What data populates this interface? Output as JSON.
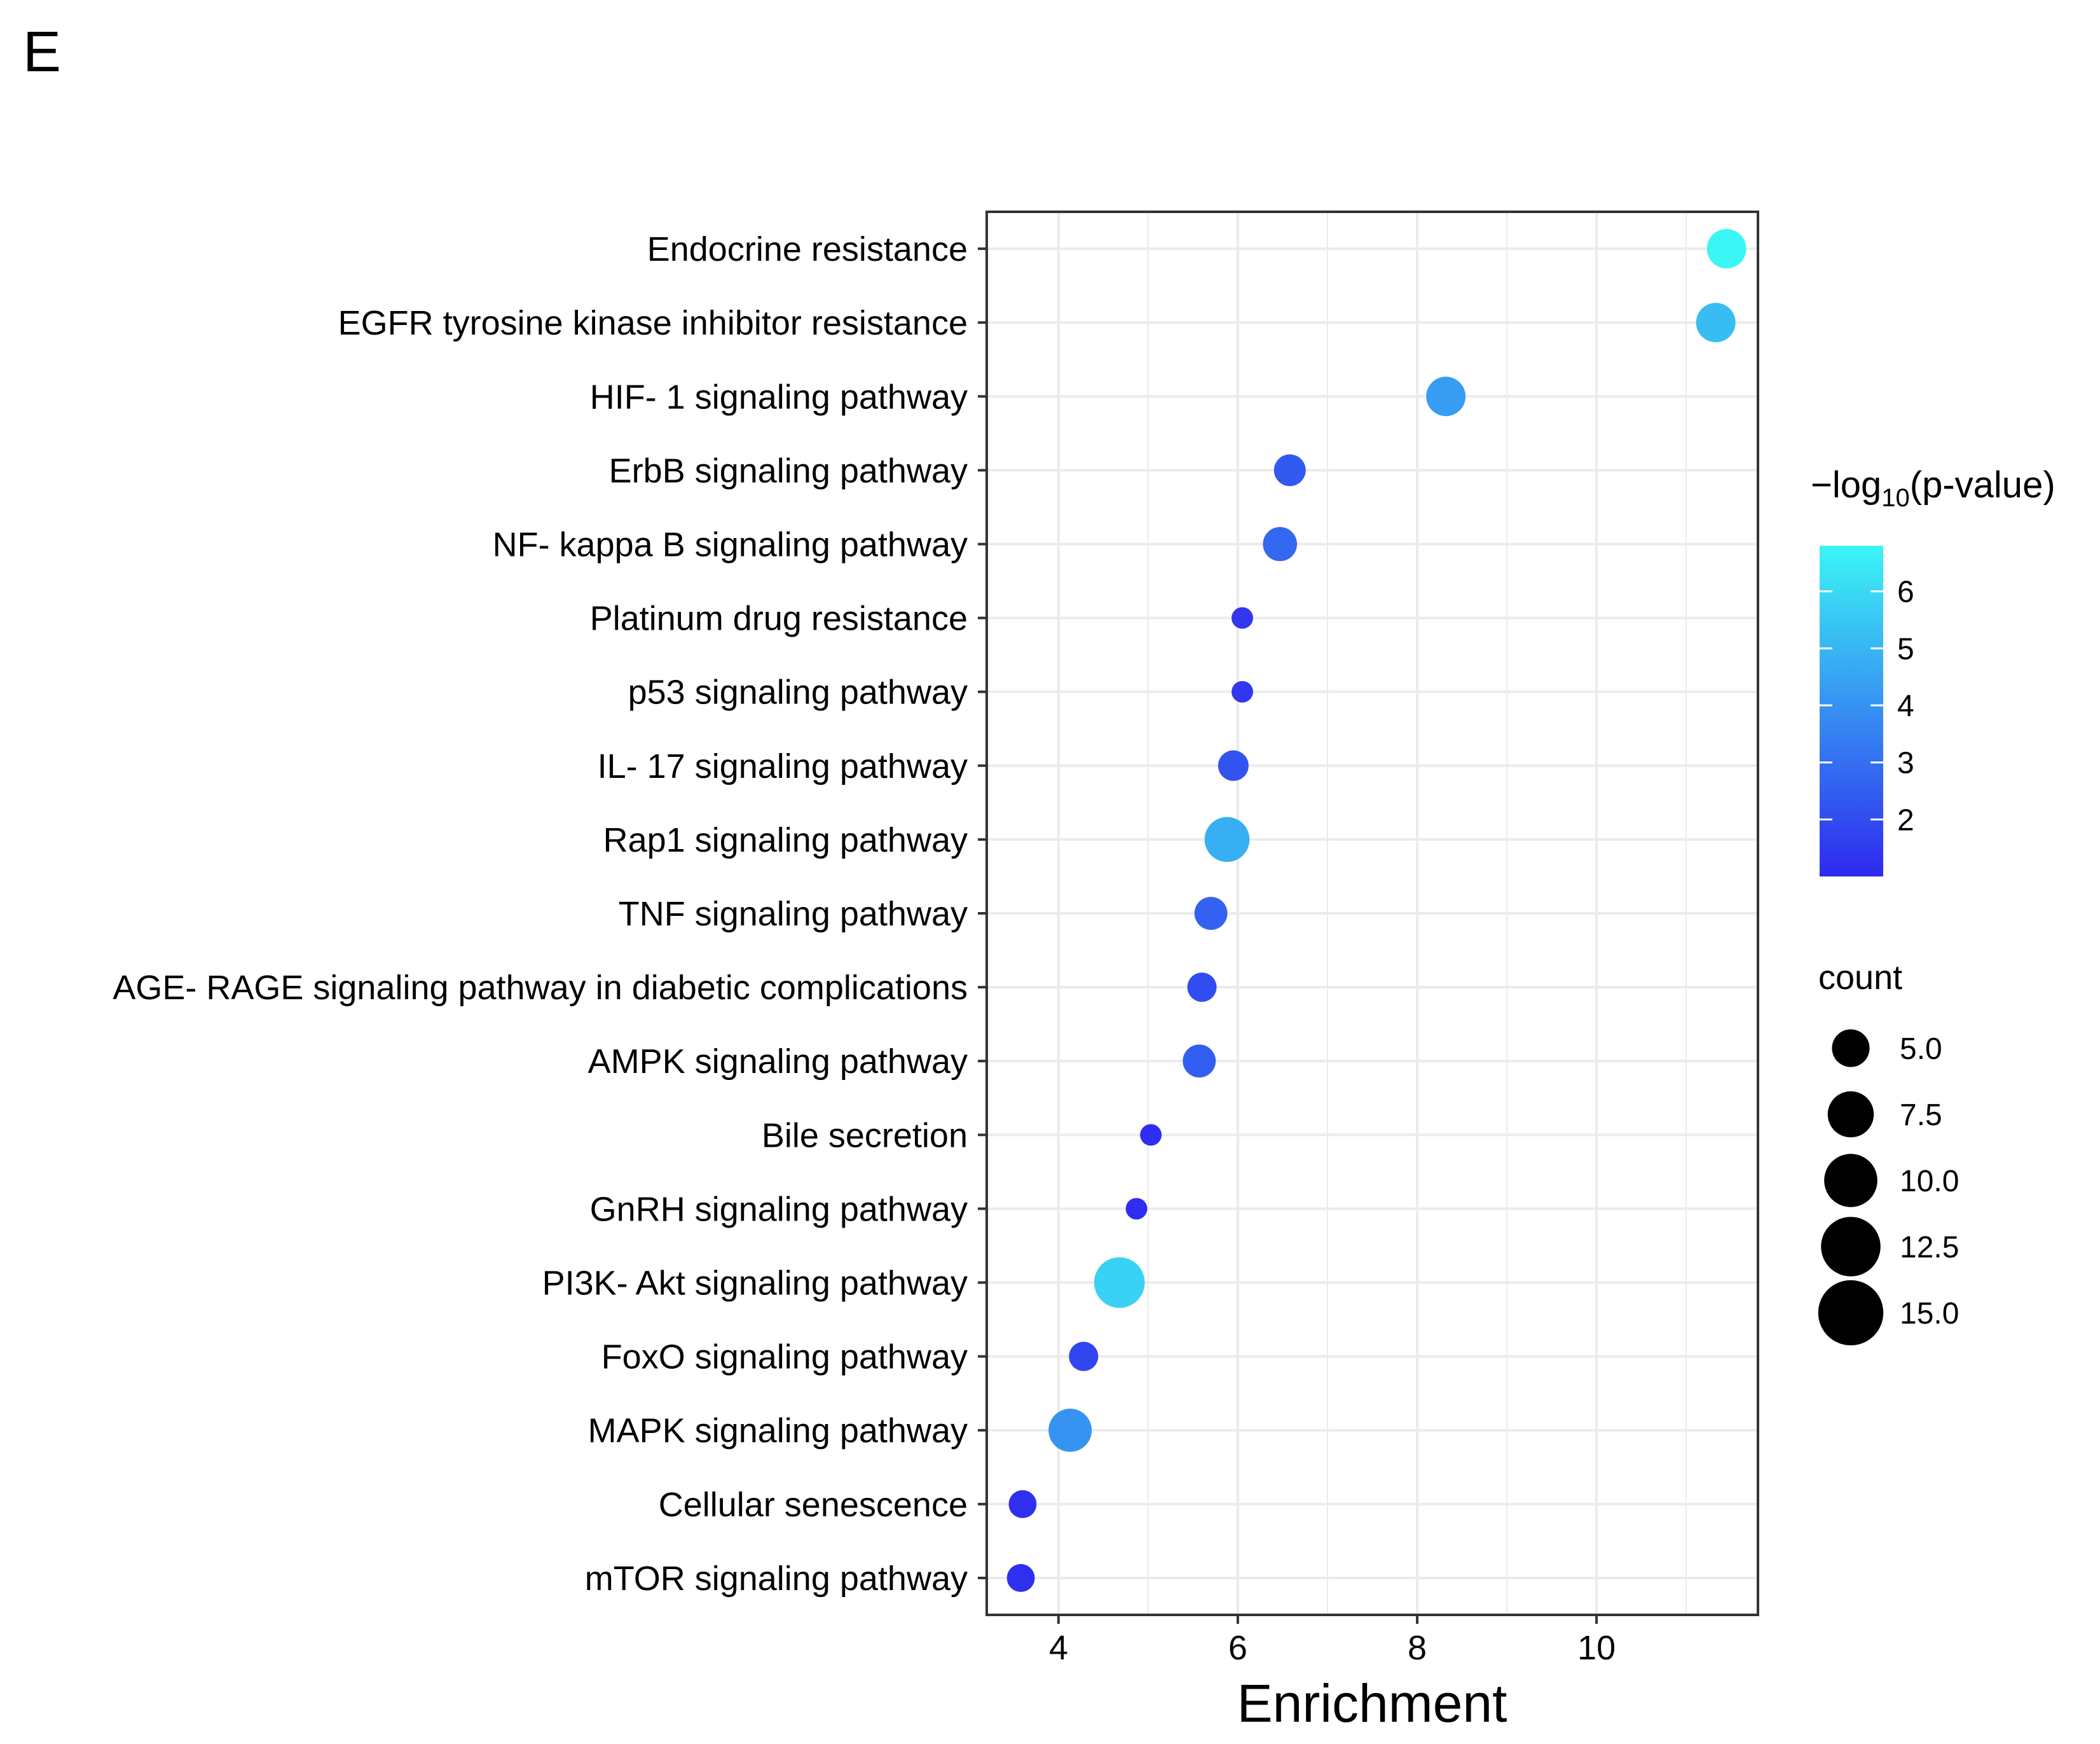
{
  "panel_label": "E",
  "chart_data": {
    "type": "scatter",
    "subtype": "dot plot",
    "xlabel": "Enrichment",
    "ylabel": "",
    "xlim": [
      3.2,
      11.8
    ],
    "x_ticks": [
      4,
      6,
      8,
      10
    ],
    "grid": true,
    "points": [
      {
        "category": "Endocrine resistance",
        "enrichment": 11.45,
        "neg_log10_p": 6.8,
        "count": 10
      },
      {
        "category": "EGFR tyrosine kinase inhibitor resistance",
        "enrichment": 11.33,
        "neg_log10_p": 5.2,
        "count": 10
      },
      {
        "category": "HIF- 1 signaling pathway",
        "enrichment": 8.32,
        "neg_log10_p": 4.3,
        "count": 10
      },
      {
        "category": "ErbB signaling pathway",
        "enrichment": 6.58,
        "neg_log10_p": 2.4,
        "count": 6.5
      },
      {
        "category": "NF- kappa B signaling pathway",
        "enrichment": 6.47,
        "neg_log10_p": 2.8,
        "count": 7.5
      },
      {
        "category": "Platinum drug resistance",
        "enrichment": 6.05,
        "neg_log10_p": 1.4,
        "count": 3
      },
      {
        "category": "p53 signaling pathway",
        "enrichment": 6.05,
        "neg_log10_p": 1.4,
        "count": 3
      },
      {
        "category": "IL- 17 signaling pathway",
        "enrichment": 5.95,
        "neg_log10_p": 2.2,
        "count": 6
      },
      {
        "category": "Rap1 signaling pathway",
        "enrichment": 5.88,
        "neg_log10_p": 4.8,
        "count": 13
      },
      {
        "category": "TNF signaling pathway",
        "enrichment": 5.7,
        "neg_log10_p": 2.6,
        "count": 7
      },
      {
        "category": "AGE- RAGE signaling pathway in diabetic complications",
        "enrichment": 5.6,
        "neg_log10_p": 2.0,
        "count": 5.5
      },
      {
        "category": "AMPK signaling pathway",
        "enrichment": 5.57,
        "neg_log10_p": 2.5,
        "count": 7
      },
      {
        "category": "Bile secretion",
        "enrichment": 5.03,
        "neg_log10_p": 1.1,
        "count": 3
      },
      {
        "category": "GnRH signaling pathway",
        "enrichment": 4.87,
        "neg_log10_p": 1.1,
        "count": 3
      },
      {
        "category": "PI3K- Akt signaling pathway",
        "enrichment": 4.68,
        "neg_log10_p": 5.8,
        "count": 16.5
      },
      {
        "category": "FoxO signaling pathway",
        "enrichment": 4.28,
        "neg_log10_p": 1.8,
        "count": 5.5
      },
      {
        "category": "MAPK signaling pathway",
        "enrichment": 4.13,
        "neg_log10_p": 4.0,
        "count": 12
      },
      {
        "category": "Cellular senescence",
        "enrichment": 3.6,
        "neg_log10_p": 1.2,
        "count": 5
      },
      {
        "category": "mTOR signaling pathway",
        "enrichment": 3.58,
        "neg_log10_p": 1.2,
        "count": 5
      }
    ],
    "color_legend": {
      "title_prefix": "−log",
      "title_subscript": "10",
      "title_suffix": "(p-value)",
      "range": [
        1.0,
        6.8
      ],
      "ticks": [
        2,
        3,
        4,
        5,
        6
      ],
      "low_color": "#2f29ef",
      "high_color": "#3cf5f5"
    },
    "size_legend": {
      "title": "count",
      "values": [
        5.0,
        7.5,
        10.0,
        12.5,
        15.0
      ],
      "labels": [
        "5.0",
        "7.5",
        "10.0",
        "12.5",
        "15.0"
      ]
    }
  }
}
